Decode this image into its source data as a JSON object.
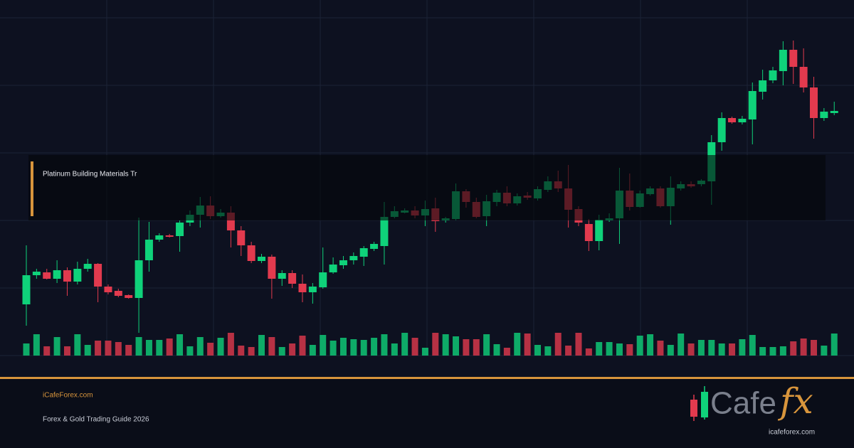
{
  "chart_data": {
    "type": "candlestick",
    "title": "Platinum Building Materials Tr",
    "ylim": [
      0,
      475
    ],
    "yticks": [
      0,
      95,
      190,
      285,
      380,
      475
    ],
    "grid": true,
    "up_color": "#0fd27a",
    "down_color": "#e23a4e",
    "open": [
      72,
      113,
      117,
      108,
      120,
      104,
      122,
      129,
      97,
      91,
      85,
      81,
      134,
      163,
      169,
      168,
      187,
      198,
      211,
      196,
      201,
      176,
      155,
      133,
      139,
      108,
      116,
      101,
      89,
      96,
      117,
      127,
      134,
      139,
      150,
      154,
      195,
      201,
      204,
      197,
      207,
      190,
      192,
      231,
      216,
      196,
      216,
      229,
      214,
      225,
      221,
      233,
      245,
      235,
      206,
      185,
      161,
      190,
      193,
      232,
      209,
      227,
      235,
      210,
      235,
      241,
      241,
      245,
      300,
      334,
      328,
      332,
      371,
      387,
      400,
      430,
      406,
      377,
      334,
      341
    ],
    "high": [
      155,
      122,
      122,
      134,
      124,
      132,
      136,
      130,
      100,
      94,
      86,
      194,
      188,
      172,
      171,
      190,
      204,
      223,
      224,
      206,
      210,
      182,
      160,
      143,
      142,
      120,
      120,
      114,
      102,
      152,
      138,
      140,
      145,
      154,
      160,
      216,
      210,
      207,
      210,
      218,
      222,
      195,
      242,
      234,
      222,
      226,
      233,
      238,
      228,
      230,
      238,
      252,
      260,
      268,
      210,
      192,
      198,
      200,
      264,
      256,
      232,
      238,
      238,
      252,
      245,
      245,
      248,
      310,
      342,
      336,
      337,
      384,
      402,
      406,
      442,
      443,
      432,
      392,
      348,
      357
    ],
    "low": [
      42,
      108,
      107,
      102,
      84,
      100,
      118,
      75,
      86,
      82,
      80,
      32,
      118,
      160,
      166,
      146,
      182,
      180,
      192,
      194,
      152,
      140,
      130,
      130,
      80,
      98,
      95,
      75,
      73,
      94,
      115,
      122,
      128,
      126,
      147,
      128,
      193,
      200,
      193,
      182,
      174,
      187,
      190,
      208,
      193,
      182,
      210,
      210,
      211,
      219,
      218,
      230,
      230,
      180,
      182,
      147,
      148,
      188,
      157,
      204,
      208,
      225,
      208,
      184,
      232,
      236,
      238,
      212,
      288,
      326,
      325,
      297,
      360,
      383,
      380,
      382,
      370,
      305,
      330,
      338
    ],
    "close": [
      113,
      118,
      108,
      120,
      104,
      122,
      129,
      97,
      89,
      84,
      81,
      134,
      163,
      169,
      167,
      187,
      198,
      211,
      196,
      201,
      176,
      155,
      133,
      139,
      108,
      116,
      101,
      89,
      97,
      117,
      128,
      134,
      140,
      151,
      157,
      195,
      203,
      204,
      197,
      206,
      189,
      193,
      231,
      216,
      195,
      217,
      229,
      214,
      224,
      222,
      234,
      245,
      235,
      205,
      187,
      161,
      191,
      193,
      232,
      209,
      228,
      235,
      210,
      236,
      241,
      238,
      246,
      300,
      334,
      328,
      333,
      372,
      387,
      401,
      430,
      406,
      377,
      334,
      343,
      344
    ],
    "volume": [
      17,
      30,
      13,
      26,
      13,
      30,
      15,
      21,
      21,
      19,
      15,
      26,
      22,
      22,
      24,
      30,
      13,
      26,
      18,
      25,
      32,
      14,
      12,
      29,
      26,
      12,
      17,
      28,
      15,
      29,
      21,
      25,
      23,
      22,
      25,
      30,
      17,
      32,
      25,
      11,
      32,
      30,
      27,
      23,
      23,
      30,
      16,
      11,
      32,
      31,
      15,
      13,
      32,
      14,
      32,
      10,
      19,
      19,
      17,
      16,
      28,
      30,
      21,
      15,
      31,
      17,
      22,
      22,
      17,
      17,
      23,
      29,
      12,
      12,
      13,
      20,
      24,
      22,
      14,
      31
    ]
  },
  "footer": {
    "site": "iCafeForex.com",
    "tagline": "Forex & Gold Trading Guide 2026"
  },
  "logo": {
    "word": "Cafe",
    "accent": "fx",
    "url": "icafeforex.com"
  }
}
